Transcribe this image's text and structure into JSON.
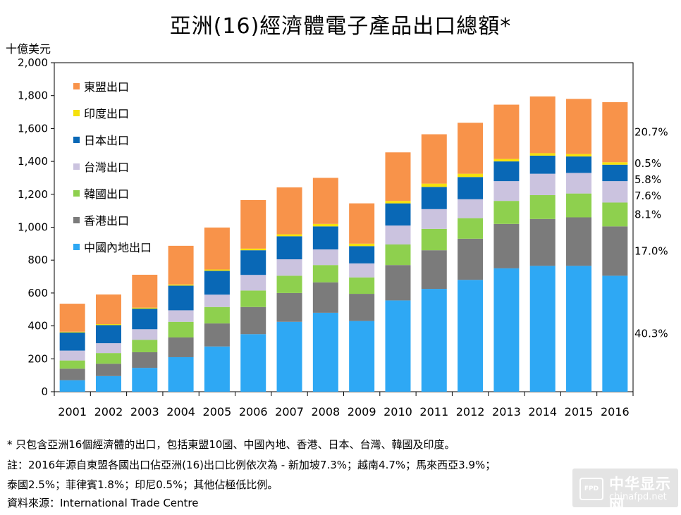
{
  "chart_data": {
    "type": "bar",
    "stacked": true,
    "title": "亞洲(16)經濟體電子產品出口總額*",
    "ylabel": "十億美元",
    "ylim": [
      0,
      2000
    ],
    "yticks": [
      0,
      200,
      400,
      600,
      800,
      1000,
      1200,
      1400,
      1600,
      1800,
      2000
    ],
    "ytick_labels": [
      "0",
      "200",
      "400",
      "600",
      "800",
      "1,000",
      "1,200",
      "1,400",
      "1,600",
      "1,800",
      "2,000"
    ],
    "categories": [
      "2001",
      "2002",
      "2003",
      "2004",
      "2005",
      "2006",
      "2007",
      "2008",
      "2009",
      "2010",
      "2011",
      "2012",
      "2013",
      "2014",
      "2015",
      "2016"
    ],
    "series": [
      {
        "name": "中國內地出口",
        "color": "#2ea8f4",
        "values": [
          70,
          95,
          145,
          210,
          275,
          350,
          425,
          480,
          430,
          555,
          625,
          680,
          750,
          765,
          765,
          705
        ]
      },
      {
        "name": "香港出口",
        "color": "#7b7b7b",
        "values": [
          70,
          75,
          95,
          120,
          140,
          165,
          175,
          185,
          165,
          215,
          235,
          250,
          270,
          285,
          295,
          300
        ]
      },
      {
        "name": "韓國出口",
        "color": "#8ed04e",
        "values": [
          50,
          65,
          75,
          95,
          100,
          100,
          105,
          105,
          100,
          125,
          130,
          125,
          140,
          145,
          145,
          145
        ]
      },
      {
        "name": "台灣出口",
        "color": "#cbc3df",
        "values": [
          60,
          60,
          65,
          70,
          75,
          95,
          100,
          95,
          85,
          115,
          120,
          115,
          120,
          130,
          125,
          130
        ]
      },
      {
        "name": "日本出口",
        "color": "#0968b6",
        "values": [
          110,
          110,
          125,
          150,
          145,
          150,
          140,
          140,
          105,
          135,
          135,
          135,
          120,
          110,
          100,
          100
        ]
      },
      {
        "name": "印度出口",
        "color": "#f5e10d",
        "values": [
          5,
          6,
          6,
          7,
          8,
          10,
          12,
          15,
          15,
          15,
          20,
          20,
          15,
          15,
          15,
          15
        ]
      },
      {
        "name": "東盟出口",
        "color": "#f8934a",
        "values": [
          170,
          180,
          200,
          235,
          255,
          295,
          285,
          280,
          245,
          295,
          300,
          310,
          330,
          345,
          335,
          365
        ]
      }
    ],
    "legend_order": [
      "東盟出口",
      "印度出口",
      "日本出口",
      "台灣出口",
      "韓國出口",
      "香港出口",
      "中國內地出口"
    ],
    "annotations": [
      {
        "series": "東盟出口",
        "text": "20.7%"
      },
      {
        "series": "印度出口",
        "text": "0.5%"
      },
      {
        "series": "日本出口",
        "text": "5.8%"
      },
      {
        "series": "台灣出口",
        "text": "7.6%"
      },
      {
        "series": "韓國出口",
        "text": "8.1%"
      },
      {
        "series": "香港出口",
        "text": "17.0%"
      },
      {
        "series": "中國內地出口",
        "text": "40.3%"
      }
    ]
  },
  "notes": {
    "line1": "* 只包含亞洲16個經濟體的出口，包括東盟10國、中國內地、香港、日本、台灣、韓國及印度。",
    "line2": "註：2016年源自東盟各國出口佔亞洲(16)出口比例依次為 - 新加坡7.3%；越南4.7%；馬來西亞3.9%；",
    "line3": "泰國2.5%；菲律賓1.8%；印尼0.5%；其他佔極低比例。",
    "line4": "資料來源：International Trade Centre"
  },
  "watermark": {
    "mark": "FPD",
    "name": "中华显示网",
    "url": "chinafpd.net"
  }
}
